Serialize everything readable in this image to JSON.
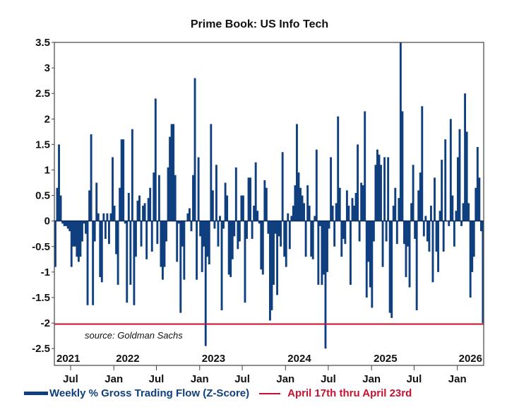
{
  "chart_data": {
    "type": "bar",
    "title": "Prime Book: US Info Tech",
    "xlabel": "",
    "ylabel": "",
    "ylim": [
      -2.83,
      3.5
    ],
    "xlim": [
      "2021-04-23",
      "2026-04-23"
    ],
    "yticks": [
      "3.5",
      "3",
      "2.5",
      "2",
      "1.5",
      "1",
      "0.5",
      "0",
      "-0.5",
      "-1",
      "-1.5",
      "-2",
      "-2.5"
    ],
    "year_labels": [
      "2021",
      "2022",
      "2023",
      "2024",
      "2025",
      "2026"
    ],
    "month_ticks": [
      {
        "label": "Jul",
        "date": "2021-07-01"
      },
      {
        "label": "Jan",
        "date": "2022-01-01"
      },
      {
        "label": "Jul",
        "date": "2022-07-01"
      },
      {
        "label": "Jan",
        "date": "2023-01-01"
      },
      {
        "label": "Jul",
        "date": "2023-07-01"
      },
      {
        "label": "Jan",
        "date": "2024-01-01"
      },
      {
        "label": "Jul",
        "date": "2024-07-01"
      },
      {
        "label": "Jan",
        "date": "2025-01-01"
      },
      {
        "label": "Jul",
        "date": "2025-07-01"
      },
      {
        "label": "Jan",
        "date": "2026-01-01"
      }
    ],
    "grid": false,
    "legend_placement": "bottom",
    "series": [
      {
        "name": "Weekly % Gross Trading Flow (Z-Score)",
        "color": "#0f3f7f",
        "values": [
          -0.9,
          0.65,
          1.5,
          0.5,
          -0.05,
          -0.1,
          -0.1,
          -0.15,
          -0.2,
          -0.9,
          -0.5,
          -0.5,
          -0.7,
          -0.8,
          -0.7,
          -0.4,
          -0.05,
          -0.25,
          -1.65,
          0.6,
          1.7,
          -1.65,
          -0.4,
          0.75,
          0.15,
          -1.1,
          -1.2,
          0.15,
          -0.35,
          0.15,
          -0.45,
          0.15,
          1.25,
          0.3,
          -0.65,
          -1.25,
          0.65,
          1.6,
          1.6,
          -0.05,
          -1.6,
          0.55,
          -1.25,
          1.8,
          -1.65,
          -0.7,
          0.4,
          0.5,
          -0.5,
          0.3,
          0.35,
          -0.75,
          0.45,
          0.65,
          -0.6,
          0.95,
          2.4,
          -0.45,
          0.9,
          -0.9,
          -1.15,
          -0.9,
          -0.4,
          1.05,
          1.65,
          1.9,
          1.9,
          0.9,
          -0.8,
          -0.05,
          -1.8,
          -0.5,
          -1.15,
          0,
          0.15,
          0.25,
          -0.2,
          0.9,
          2.8,
          -1.15,
          1.25,
          -0.3,
          -1.0,
          -0.5,
          -2.45,
          -0.7,
          -0.85,
          1.9,
          0.6,
          -0.15,
          1.1,
          -0.5,
          0.1,
          -1.75,
          -0.15,
          0.75,
          0.5,
          -1.05,
          -1.1,
          -0.75,
          -0.3,
          1.05,
          -0.55,
          -0.4,
          0.5,
          0.5,
          -1.6,
          -0.35,
          0.85,
          0.85,
          -0.35,
          0.3,
          1.15,
          0.2,
          -0.05,
          -0.95,
          -1.05,
          0.8,
          0.65,
          -0.25,
          -1.95,
          -1.75,
          -1.25,
          -0.25,
          -1.45,
          -0.3,
          -0.5,
          1.35,
          -0.7,
          -0.9,
          0.15,
          -0.55,
          0.1,
          0.3,
          0.7,
          1.9,
          0.95,
          0.65,
          0.5,
          0.35,
          -0.7,
          0.7,
          0.3,
          -0.7,
          -0.75,
          0.1,
          1.4,
          -1.25,
          -0.1,
          -1.25,
          -1.05,
          -2.5,
          -1.0,
          -0.15,
          1.25,
          0.3,
          -0.5,
          0.35,
          2.05,
          0.65,
          -0.7,
          -0.35,
          -0.45,
          0.6,
          0.3,
          -1.25,
          0.45,
          0.3,
          0.55,
          1.5,
          -0.4,
          0.75,
          0.7,
          2.15,
          -1.5,
          -0.8,
          -1.3,
          -1.7,
          -0.4,
          1.1,
          1.4,
          1.3,
          1.1,
          -0.9,
          1.25,
          -0.4,
          1.25,
          -1.8,
          -1.9,
          0.3,
          0.65,
          -0.45,
          0.45,
          3.5,
          2.15,
          -0.45,
          -1.1,
          -0.5,
          -1.3,
          0.35,
          1.1,
          -0.35,
          -1.75,
          0.6,
          0.95,
          2.25,
          -0.3,
          0.1,
          -0.4,
          -0.6,
          0.3,
          -1.2,
          0.85,
          -0.6,
          -1.0,
          0.2,
          1.2,
          -0.6,
          1.6,
          0,
          -0.1,
          2.0,
          0.5,
          -0.5,
          0.2,
          1.25,
          1.8,
          -0.1,
          0.35,
          2.5,
          1.75,
          0.35,
          -1.5,
          -1.0,
          -0.7,
          0.65,
          1.45,
          0.85,
          -0.2,
          -2.0
        ]
      }
    ],
    "reference_line": {
      "name": "April 17th thru April 23rd",
      "value": -2.02,
      "color": "#c8102e"
    },
    "annotation": "source: Goldman Sachs"
  }
}
